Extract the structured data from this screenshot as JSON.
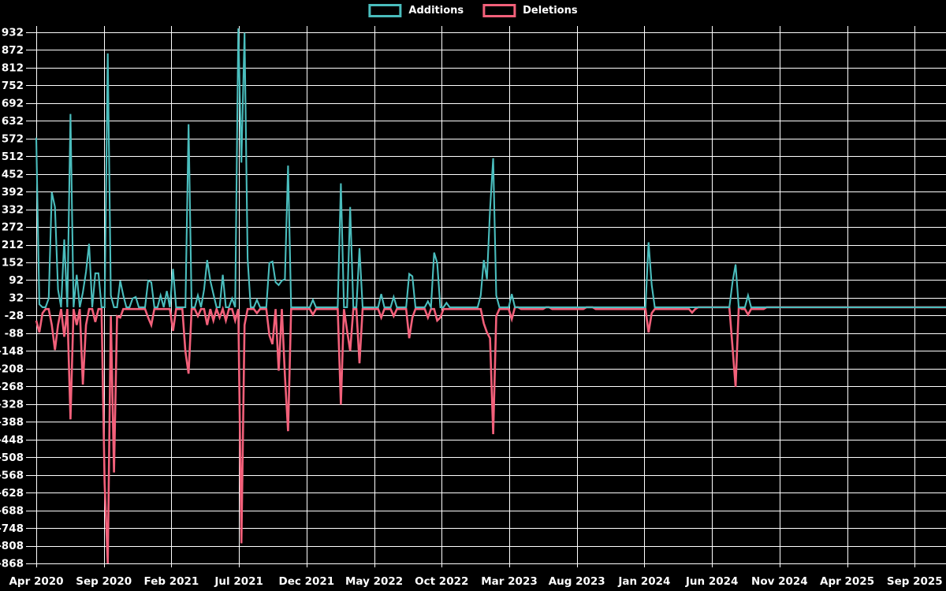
{
  "legend": {
    "items": [
      {
        "label": "Additions",
        "color": "#4abdbd"
      },
      {
        "label": "Deletions",
        "color": "#f2607a"
      }
    ]
  },
  "chart_data": {
    "type": "line",
    "title": "",
    "background_color": "#000000",
    "grid_color": "#ffffff",
    "text_color": "#ffffff",
    "grid": true,
    "legend_position": "top",
    "x_unit": "week",
    "x_tick_labels": [
      "Apr 2020",
      "Sep 2020",
      "Feb 2021",
      "Jul 2021",
      "Dec 2021",
      "May 2022",
      "Oct 2022",
      "Mar 2023",
      "Aug 2023",
      "Jan 2024",
      "Jun 2024",
      "Nov 2024",
      "Apr 2025",
      "Sep 2025"
    ],
    "months_between_x_ticks": 5,
    "y_ticks": [
      932,
      872,
      812,
      752,
      692,
      632,
      572,
      512,
      452,
      392,
      332,
      272,
      212,
      152,
      92,
      32,
      -28,
      -88,
      -148,
      -208,
      -268,
      -328,
      -388,
      -448,
      -508,
      -568,
      -628,
      -688,
      -748,
      -808,
      -868
    ],
    "y_axis_range_shown": [
      -868,
      932
    ],
    "weeks_total": 294,
    "series": [
      {
        "name": "Additions",
        "color": "#4abdbd",
        "default_value": 0,
        "points_sparse": [
          [
            0,
            575
          ],
          [
            1,
            10
          ],
          [
            4,
            30
          ],
          [
            5,
            390
          ],
          [
            6,
            340
          ],
          [
            7,
            60
          ],
          [
            9,
            230
          ],
          [
            11,
            655
          ],
          [
            13,
            110
          ],
          [
            15,
            50
          ],
          [
            16,
            120
          ],
          [
            17,
            215
          ],
          [
            19,
            115
          ],
          [
            20,
            115
          ],
          [
            23,
            860
          ],
          [
            24,
            40
          ],
          [
            27,
            90
          ],
          [
            28,
            40
          ],
          [
            31,
            30
          ],
          [
            32,
            35
          ],
          [
            36,
            90
          ],
          [
            37,
            85
          ],
          [
            40,
            40
          ],
          [
            42,
            55
          ],
          [
            44,
            130
          ],
          [
            49,
            620
          ],
          [
            52,
            40
          ],
          [
            54,
            60
          ],
          [
            55,
            160
          ],
          [
            56,
            90
          ],
          [
            57,
            45
          ],
          [
            60,
            110
          ],
          [
            63,
            30
          ],
          [
            65,
            945
          ],
          [
            66,
            490
          ],
          [
            67,
            930
          ],
          [
            68,
            165
          ],
          [
            71,
            25
          ],
          [
            75,
            150
          ],
          [
            76,
            155
          ],
          [
            77,
            85
          ],
          [
            78,
            75
          ],
          [
            79,
            90
          ],
          [
            80,
            95
          ],
          [
            81,
            480
          ],
          [
            89,
            25
          ],
          [
            98,
            420
          ],
          [
            101,
            340
          ],
          [
            104,
            200
          ],
          [
            111,
            45
          ],
          [
            115,
            35
          ],
          [
            120,
            113
          ],
          [
            121,
            105
          ],
          [
            126,
            20
          ],
          [
            128,
            185
          ],
          [
            129,
            150
          ],
          [
            132,
            15
          ],
          [
            143,
            40
          ],
          [
            144,
            160
          ],
          [
            145,
            95
          ],
          [
            146,
            330
          ],
          [
            147,
            505
          ],
          [
            148,
            40
          ],
          [
            153,
            45
          ],
          [
            197,
            220
          ],
          [
            198,
            75
          ],
          [
            224,
            85
          ],
          [
            225,
            145
          ],
          [
            229,
            40
          ]
        ]
      },
      {
        "name": "Deletions",
        "color": "#f2607a",
        "default_value": 0,
        "small_baseline_value": -6,
        "small_baseline_until_week": 152,
        "small_deletion_ranges": [
          [
            156,
            163
          ],
          [
            166,
            176
          ],
          [
            180,
            196
          ],
          [
            199,
            212
          ],
          [
            227,
            234
          ]
        ],
        "points_sparse": [
          [
            0,
            -45
          ],
          [
            1,
            -85
          ],
          [
            2,
            -20
          ],
          [
            5,
            -60
          ],
          [
            6,
            -145
          ],
          [
            7,
            -60
          ],
          [
            9,
            -100
          ],
          [
            11,
            -380
          ],
          [
            13,
            -60
          ],
          [
            15,
            -262
          ],
          [
            16,
            -60
          ],
          [
            19,
            -50
          ],
          [
            22,
            -595
          ],
          [
            23,
            -868
          ],
          [
            24,
            -30
          ],
          [
            25,
            -560
          ],
          [
            26,
            -30
          ],
          [
            27,
            -35
          ],
          [
            36,
            -35
          ],
          [
            37,
            -60
          ],
          [
            44,
            -80
          ],
          [
            48,
            -150
          ],
          [
            49,
            -225
          ],
          [
            52,
            -30
          ],
          [
            55,
            -60
          ],
          [
            57,
            -45
          ],
          [
            59,
            -35
          ],
          [
            61,
            -45
          ],
          [
            64,
            -45
          ],
          [
            66,
            -800
          ],
          [
            67,
            -60
          ],
          [
            71,
            -20
          ],
          [
            75,
            -95
          ],
          [
            76,
            -125
          ],
          [
            78,
            -215
          ],
          [
            80,
            -230
          ],
          [
            81,
            -420
          ],
          [
            89,
            -25
          ],
          [
            98,
            -330
          ],
          [
            100,
            -80
          ],
          [
            101,
            -148
          ],
          [
            104,
            -190
          ],
          [
            111,
            -35
          ],
          [
            115,
            -30
          ],
          [
            120,
            -105
          ],
          [
            121,
            -35
          ],
          [
            126,
            -35
          ],
          [
            129,
            -45
          ],
          [
            130,
            -35
          ],
          [
            144,
            -55
          ],
          [
            145,
            -85
          ],
          [
            146,
            -105
          ],
          [
            147,
            -430
          ],
          [
            148,
            -30
          ],
          [
            153,
            -40
          ],
          [
            197,
            -85
          ],
          [
            198,
            -20
          ],
          [
            211,
            -18
          ],
          [
            224,
            -135
          ],
          [
            225,
            -270
          ],
          [
            229,
            -25
          ]
        ]
      }
    ]
  }
}
